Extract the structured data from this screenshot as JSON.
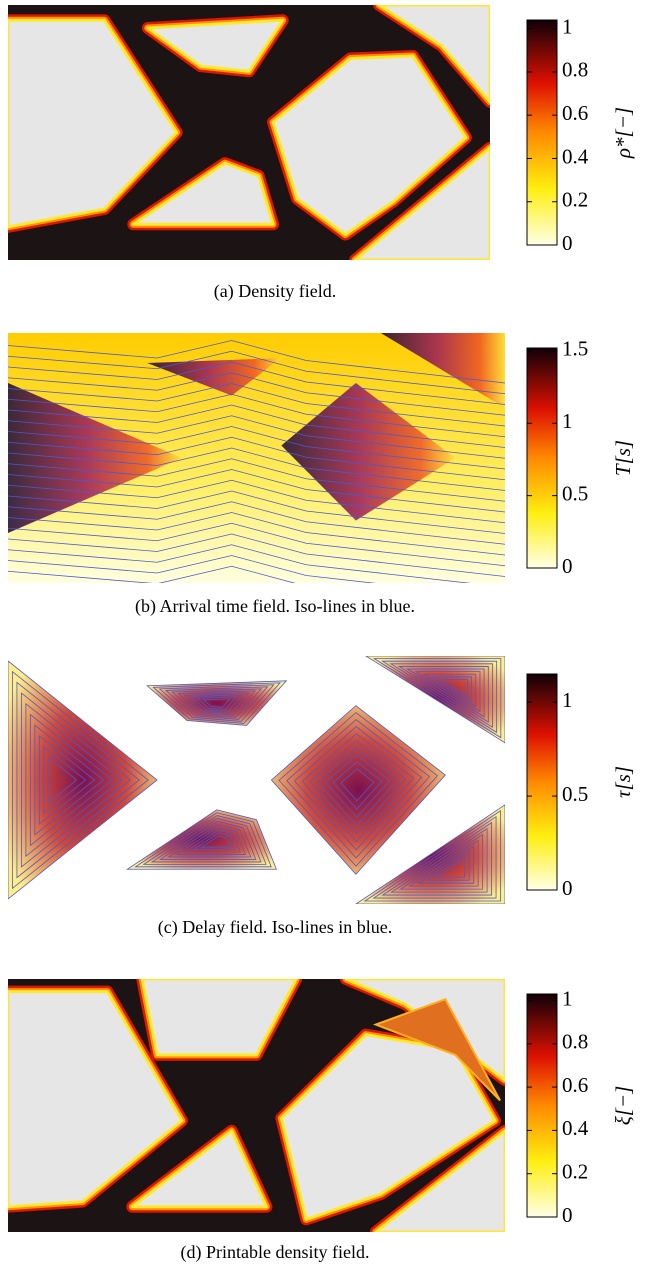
{
  "panels": [
    {
      "caption": "(a) Density field.",
      "colorbar": {
        "label": "ρ*[−]",
        "lim": [
          0,
          1.04
        ],
        "ticks": [
          0,
          0.2,
          0.4,
          0.6,
          0.8,
          1
        ]
      }
    },
    {
      "caption": "(b) Arrival time field. Iso-lines in blue.",
      "colorbar": {
        "label": "T[s]",
        "lim": [
          0,
          1.52
        ],
        "ticks": [
          0,
          0.5,
          1,
          1.5
        ]
      }
    },
    {
      "caption": "(c) Delay field. Iso-lines in blue.",
      "colorbar": {
        "label": "τ[s]",
        "lim": [
          0,
          1.15
        ],
        "ticks": [
          0,
          0.5,
          1
        ]
      }
    },
    {
      "caption": "(d) Printable density field.",
      "colorbar": {
        "label": "ξ[−]",
        "lim": [
          0,
          1.03
        ],
        "ticks": [
          0,
          0.2,
          0.4,
          0.6,
          0.8,
          1
        ]
      }
    }
  ]
}
